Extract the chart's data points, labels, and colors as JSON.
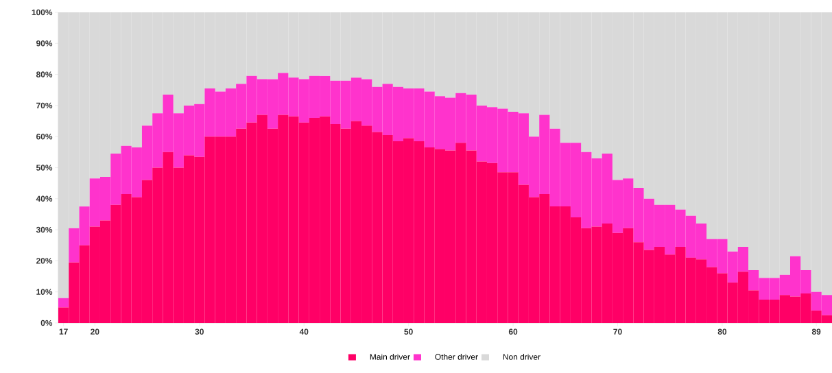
{
  "chart_data": {
    "type": "bar",
    "stacked": true,
    "categories": [
      "17",
      null,
      null,
      "20",
      null,
      null,
      null,
      null,
      null,
      null,
      null,
      null,
      null,
      "30",
      null,
      null,
      null,
      null,
      null,
      null,
      null,
      null,
      null,
      "40",
      null,
      null,
      null,
      null,
      null,
      null,
      null,
      null,
      null,
      "50",
      null,
      null,
      null,
      null,
      null,
      null,
      null,
      null,
      null,
      "60",
      null,
      null,
      null,
      null,
      null,
      null,
      null,
      null,
      null,
      "70",
      null,
      null,
      null,
      null,
      null,
      null,
      null,
      null,
      null,
      "80",
      null,
      null,
      null,
      null,
      null,
      null,
      null,
      null,
      "89",
      null
    ],
    "series": [
      {
        "name": "Main driver",
        "color": "#ff0066",
        "values": [
          5,
          19.5,
          25,
          31,
          33,
          38,
          41.5,
          40.5,
          46,
          50,
          55,
          50,
          54,
          53.5,
          60,
          60,
          60,
          62.5,
          64.5,
          67,
          62.5,
          67,
          66.5,
          64.5,
          66,
          66.5,
          64,
          62.5,
          65,
          63.5,
          61.5,
          60.5,
          58.5,
          59.5,
          58.5,
          56.5,
          56,
          55.5,
          58,
          55.5,
          52,
          51.5,
          48.5,
          48.5,
          44.5,
          40.5,
          41.5,
          37.5,
          37.5,
          34,
          30.5,
          31,
          32,
          29,
          30.5,
          26,
          23.5,
          24.5,
          22,
          24.5,
          21,
          20.5,
          18,
          16,
          13,
          16.5,
          10.5,
          7.5,
          7.5,
          9,
          8.5,
          9.5,
          4,
          2.5
        ]
      },
      {
        "name": "Other driver",
        "color": "#ff33cc",
        "values": [
          3,
          11,
          12.5,
          15.5,
          14,
          16.5,
          15.5,
          16,
          17.5,
          17.5,
          18.5,
          17.5,
          16,
          17,
          15.5,
          14.5,
          15.5,
          14.5,
          15,
          11.5,
          16,
          13.5,
          12.5,
          14,
          13.5,
          13,
          14,
          15.5,
          14,
          15,
          14.5,
          16.5,
          17.5,
          16,
          17,
          18,
          17,
          17,
          16,
          18,
          18,
          18,
          20.5,
          19.5,
          23,
          19.5,
          25.5,
          25,
          20.5,
          24,
          24.5,
          22,
          22.5,
          17,
          16,
          17.5,
          16.5,
          13.5,
          16,
          12,
          13.5,
          11.5,
          9,
          11,
          10,
          8,
          6.5,
          7,
          7,
          6.5,
          13,
          7.5,
          6,
          6.5
        ]
      },
      {
        "name": "Non driver",
        "color": "#d9d9d9",
        "values": [
          92,
          69.5,
          62.5,
          53.5,
          53,
          45.5,
          43,
          43.5,
          36.5,
          32.5,
          26.5,
          32.5,
          30,
          29.5,
          24.5,
          25.5,
          24.5,
          23,
          20.5,
          21.5,
          21.5,
          19.5,
          21,
          21.5,
          20.5,
          20.5,
          22,
          22,
          21,
          21.5,
          24,
          23,
          24,
          24.5,
          24.5,
          25.5,
          27,
          27.5,
          26,
          26.5,
          30,
          30.5,
          31,
          32,
          32.5,
          40,
          33,
          37.5,
          42,
          42,
          45,
          47,
          45.5,
          54,
          53.5,
          56.5,
          60,
          62,
          62,
          63.5,
          65.5,
          68,
          73,
          73,
          77,
          75.5,
          83,
          85.5,
          85.5,
          84.5,
          78.5,
          83,
          90,
          91
        ]
      }
    ],
    "ylim": [
      0,
      100
    ],
    "yticks": [
      {
        "value": 0,
        "label": "0%"
      },
      {
        "value": 10,
        "label": "10%"
      },
      {
        "value": 20,
        "label": "20%"
      },
      {
        "value": 30,
        "label": "30%"
      },
      {
        "value": 40,
        "label": "40%"
      },
      {
        "value": 50,
        "label": "50%"
      },
      {
        "value": 60,
        "label": "60%"
      },
      {
        "value": 70,
        "label": "70%"
      },
      {
        "value": 80,
        "label": "80%"
      },
      {
        "value": 90,
        "label": "90%"
      },
      {
        "value": 100,
        "label": "100%"
      }
    ],
    "legend": "bottom"
  }
}
